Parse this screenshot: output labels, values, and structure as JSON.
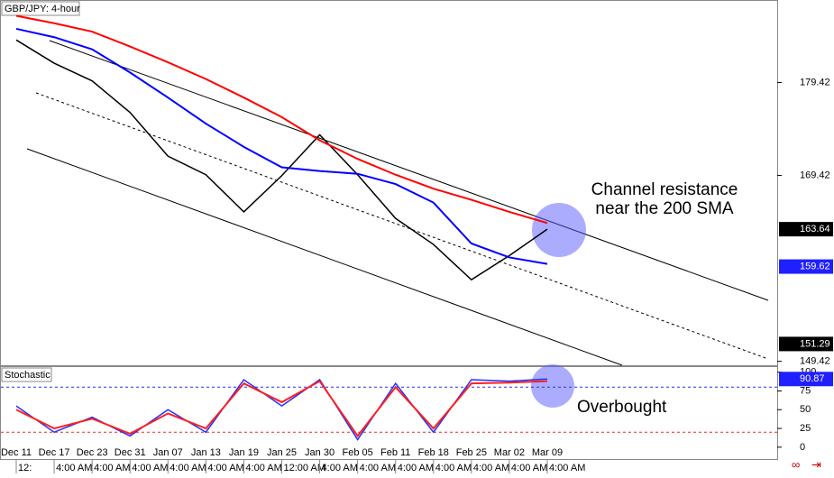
{
  "chart_data": [
    {
      "type": "line",
      "title": "GBP/JPY: 4-hour",
      "categories": [
        "Dec 11",
        "Dec 17",
        "Dec 23",
        "Dec 31",
        "Jan 07",
        "Jan 13",
        "Jan 19",
        "Jan 25",
        "Jan 30",
        "Feb 05",
        "Feb 11",
        "Feb 18",
        "Feb 25",
        "Mar 02",
        "Mar 09"
      ],
      "x_sublabels": [
        "12:",
        "4:00 AM",
        "4:00 AM",
        "4:00 AM",
        "4:00 AM",
        "4:00 AM",
        "4:00 AM",
        "12:00 AM",
        "4:00 AM",
        "4:00 AM",
        "4:00 AM",
        "4:00 AM",
        "4:00 AM",
        "4:00 AM",
        "4:00 AM"
      ],
      "series": [
        {
          "color": "#000000",
          "values": [
            184.0,
            181.5,
            179.6,
            176.2,
            171.5,
            169.5,
            165.5,
            169.4,
            173.8,
            169.5,
            164.8,
            162.0,
            158.2,
            160.8,
            163.64
          ]
        },
        {
          "color": "#ff0000",
          "values": [
            186.6,
            185.8,
            184.9,
            183.3,
            181.6,
            179.8,
            177.8,
            175.7,
            173.2,
            171.2,
            169.5,
            168.0,
            166.8,
            165.5,
            164.3
          ]
        },
        {
          "color": "#0000ff",
          "values": [
            185.2,
            184.3,
            183.0,
            180.5,
            177.8,
            175.0,
            172.5,
            170.3,
            169.9,
            169.6,
            168.5,
            166.5,
            162.1,
            160.6,
            159.9
          ]
        }
      ],
      "ylim": [
        149.0,
        188.3
      ],
      "yticks": [
        149.42,
        169.42,
        179.42
      ],
      "price_markers": [
        {
          "value": 163.64,
          "color": "#000000"
        },
        {
          "value": 159.62,
          "color": "#2020ff"
        },
        {
          "value": 151.29,
          "color": "#000000"
        }
      ],
      "annotations": [
        "Channel resistance",
        "near the 200 SMA"
      ]
    },
    {
      "type": "line",
      "title": "Stochastic",
      "series": [
        {
          "color": "#2030ff",
          "values": [
            55,
            20,
            40,
            15,
            50,
            20,
            90,
            55,
            90,
            10,
            85,
            20,
            90,
            88,
            90.87
          ]
        },
        {
          "color": "#ff2020",
          "values": [
            50,
            25,
            38,
            18,
            45,
            25,
            85,
            60,
            88,
            15,
            80,
            25,
            85,
            86,
            88
          ]
        }
      ],
      "levels": [
        80,
        20
      ],
      "level_colors": [
        "#2030ff",
        "#ff2020"
      ],
      "ylim": [
        -17,
        108
      ],
      "yticks": [
        0,
        25,
        50,
        75,
        100
      ],
      "price_markers": [
        {
          "value": 90.87,
          "color": "#2020ff"
        }
      ],
      "annotations": [
        "Overbought"
      ]
    }
  ]
}
